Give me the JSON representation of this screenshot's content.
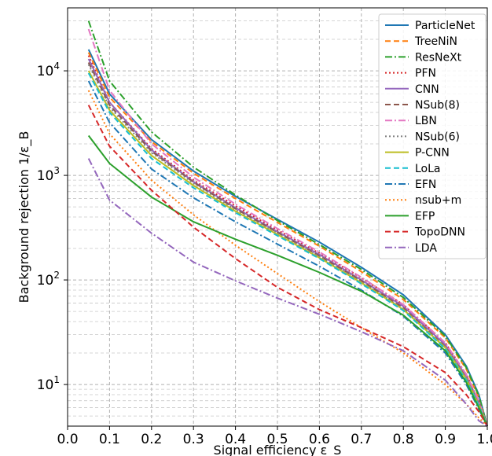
{
  "chart_data": {
    "type": "line",
    "xlabel": "Signal efficiency ε_S",
    "ylabel": "Background rejection 1/ε_B",
    "xlim": [
      0.0,
      1.0
    ],
    "ylim": [
      4,
      40000
    ],
    "yscale": "log",
    "grid": true,
    "legend_placement": "upper-right",
    "x_ticks": [
      "0.0",
      "0.1",
      "0.2",
      "0.3",
      "0.4",
      "0.5",
      "0.6",
      "0.7",
      "0.8",
      "0.9",
      "1.0"
    ],
    "y_ticks": [
      {
        "value": 10,
        "label": "10^1"
      },
      {
        "value": 100,
        "label": "10^2"
      },
      {
        "value": 1000,
        "label": "10^3"
      },
      {
        "value": 10000,
        "label": "10^4"
      }
    ],
    "series": [
      {
        "name": "ParticleNet",
        "color": "#1f77b4",
        "dash": "solid",
        "x": [
          0.05,
          0.1,
          0.2,
          0.3,
          0.4,
          0.5,
          0.6,
          0.7,
          0.8,
          0.9,
          0.95,
          0.98,
          1.0
        ],
        "y": [
          16000,
          6000,
          2200,
          1100,
          630,
          380,
          230,
          132,
          72,
          30,
          15,
          8,
          4
        ]
      },
      {
        "name": "TreeNiN",
        "color": "#ff7f0e",
        "dash": "dashed",
        "x": [
          0.05,
          0.1,
          0.2,
          0.3,
          0.4,
          0.5,
          0.6,
          0.7,
          0.8,
          0.9,
          0.95,
          0.98,
          1.0
        ],
        "y": [
          15000,
          5600,
          2100,
          1050,
          600,
          355,
          210,
          120,
          65,
          28,
          14,
          7.5,
          4
        ]
      },
      {
        "name": "ResNeXt",
        "color": "#2ca02c",
        "dash": "dashdot",
        "x": [
          0.05,
          0.1,
          0.2,
          0.3,
          0.4,
          0.5,
          0.6,
          0.7,
          0.8,
          0.9,
          0.95,
          0.98,
          1.0
        ],
        "y": [
          30000,
          8000,
          2600,
          1200,
          650,
          370,
          218,
          126,
          68,
          29,
          14.5,
          7.8,
          4
        ]
      },
      {
        "name": "PFN",
        "color": "#d62728",
        "dash": "dotted",
        "x": [
          0.05,
          0.1,
          0.2,
          0.3,
          0.4,
          0.5,
          0.6,
          0.7,
          0.8,
          0.9,
          0.95,
          0.98,
          1.0
        ],
        "y": [
          14000,
          5000,
          1800,
          900,
          510,
          300,
          180,
          105,
          58,
          25,
          12.5,
          7,
          4
        ]
      },
      {
        "name": "CNN",
        "color": "#9467bd",
        "dash": "solid",
        "x": [
          0.05,
          0.1,
          0.2,
          0.3,
          0.4,
          0.5,
          0.6,
          0.7,
          0.8,
          0.9,
          0.95,
          0.98,
          1.0
        ],
        "y": [
          13000,
          5000,
          1750,
          870,
          490,
          290,
          175,
          100,
          56,
          24,
          12,
          6.8,
          4
        ]
      },
      {
        "name": "NSub(8)",
        "color": "#8c564b",
        "dash": "dashed",
        "x": [
          0.05,
          0.1,
          0.2,
          0.3,
          0.4,
          0.5,
          0.6,
          0.7,
          0.8,
          0.9,
          0.95,
          0.98,
          1.0
        ],
        "y": [
          12000,
          4700,
          1700,
          860,
          480,
          285,
          170,
          98,
          54,
          23,
          11.5,
          6.5,
          4
        ]
      },
      {
        "name": "LBN",
        "color": "#e377c2",
        "dash": "dashdot",
        "x": [
          0.05,
          0.1,
          0.2,
          0.3,
          0.4,
          0.5,
          0.6,
          0.7,
          0.8,
          0.9,
          0.95,
          0.98,
          1.0
        ],
        "y": [
          25000,
          6500,
          2000,
          960,
          530,
          310,
          185,
          106,
          58,
          25,
          12.5,
          7,
          4
        ]
      },
      {
        "name": "NSub(6)",
        "color": "#7f7f7f",
        "dash": "dotted",
        "x": [
          0.05,
          0.1,
          0.2,
          0.3,
          0.4,
          0.5,
          0.6,
          0.7,
          0.8,
          0.9,
          0.95,
          0.98,
          1.0
        ],
        "y": [
          11500,
          4500,
          1650,
          840,
          470,
          280,
          168,
          96,
          53,
          23,
          11.5,
          6.5,
          4
        ]
      },
      {
        "name": "P-CNN",
        "color": "#bcbd22",
        "dash": "solid",
        "x": [
          0.05,
          0.1,
          0.2,
          0.3,
          0.4,
          0.5,
          0.6,
          0.7,
          0.8,
          0.9,
          0.95,
          0.98,
          1.0
        ],
        "y": [
          10000,
          4200,
          1550,
          800,
          455,
          272,
          163,
          94,
          52,
          22.5,
          11.3,
          6.4,
          4
        ]
      },
      {
        "name": "LoLa",
        "color": "#17becf",
        "dash": "dashed",
        "x": [
          0.05,
          0.1,
          0.2,
          0.3,
          0.4,
          0.5,
          0.6,
          0.7,
          0.8,
          0.9,
          0.95,
          0.98,
          1.0
        ],
        "y": [
          9500,
          4000,
          1450,
          760,
          440,
          265,
          160,
          92,
          51,
          22,
          11,
          6.3,
          4
        ]
      },
      {
        "name": "EFN",
        "color": "#1f77b4",
        "dash": "dashdot",
        "x": [
          0.05,
          0.1,
          0.2,
          0.3,
          0.4,
          0.5,
          0.6,
          0.7,
          0.8,
          0.9,
          0.95,
          0.98,
          1.0
        ],
        "y": [
          8000,
          3200,
          1150,
          610,
          360,
          220,
          135,
          80,
          45,
          20,
          10,
          5.8,
          4
        ]
      },
      {
        "name": "nsub+m",
        "color": "#ff7f0e",
        "dash": "dotted",
        "x": [
          0.05,
          0.1,
          0.2,
          0.3,
          0.4,
          0.5,
          0.6,
          0.7,
          0.8,
          0.9,
          0.95,
          0.98,
          1.0
        ],
        "y": [
          6500,
          2500,
          900,
          420,
          215,
          115,
          62,
          35,
          20,
          10,
          6.5,
          4.8,
          4
        ]
      },
      {
        "name": "EFP",
        "color": "#2ca02c",
        "dash": "solid",
        "x": [
          0.05,
          0.1,
          0.2,
          0.3,
          0.4,
          0.5,
          0.6,
          0.7,
          0.8,
          0.9,
          0.95,
          0.98,
          1.0
        ],
        "y": [
          2400,
          1300,
          620,
          360,
          245,
          172,
          118,
          78,
          46,
          21,
          10.5,
          6,
          4
        ]
      },
      {
        "name": "TopoDNN",
        "color": "#d62728",
        "dash": "dashed",
        "x": [
          0.05,
          0.1,
          0.2,
          0.3,
          0.4,
          0.5,
          0.6,
          0.7,
          0.8,
          0.9,
          0.95,
          0.98,
          1.0
        ],
        "y": [
          4700,
          1900,
          720,
          320,
          160,
          85,
          52,
          35,
          23,
          13,
          8,
          5.5,
          4
        ]
      },
      {
        "name": "LDA",
        "color": "#9467bd",
        "dash": "dashdot",
        "x": [
          0.05,
          0.1,
          0.2,
          0.3,
          0.4,
          0.5,
          0.6,
          0.7,
          0.8,
          0.9,
          0.95,
          0.98,
          1.0
        ],
        "y": [
          1450,
          580,
          280,
          148,
          98,
          67,
          47,
          32,
          21,
          11,
          6.5,
          4.5,
          4
        ]
      }
    ]
  }
}
